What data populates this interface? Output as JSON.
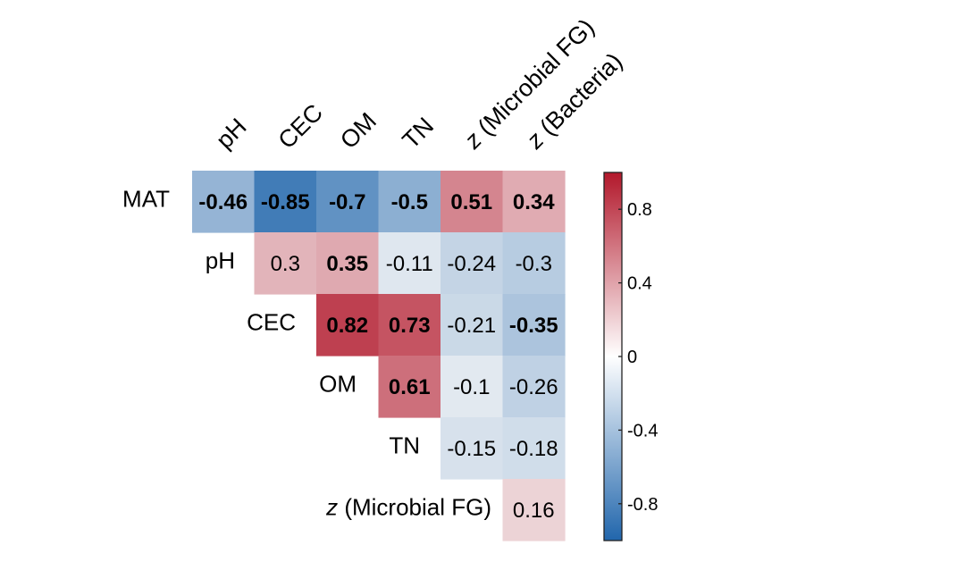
{
  "chart_data": {
    "type": "heatmap",
    "title": "",
    "columns": [
      "pH",
      "CEC",
      "OM",
      "TN",
      "z (Microbial FG)",
      "z (Bacteria)"
    ],
    "rows": [
      "MAT",
      "pH",
      "CEC",
      "OM",
      "TN",
      "z (Microbial FG)"
    ],
    "cells": [
      {
        "row": "MAT",
        "col": "pH",
        "value": -0.46,
        "bold": true
      },
      {
        "row": "MAT",
        "col": "CEC",
        "value": -0.85,
        "bold": true
      },
      {
        "row": "MAT",
        "col": "OM",
        "value": -0.7,
        "bold": true
      },
      {
        "row": "MAT",
        "col": "TN",
        "value": -0.5,
        "bold": true
      },
      {
        "row": "MAT",
        "col": "z (Microbial FG)",
        "value": 0.51,
        "bold": true
      },
      {
        "row": "MAT",
        "col": "z (Bacteria)",
        "value": 0.34,
        "bold": true
      },
      {
        "row": "pH",
        "col": "CEC",
        "value": 0.3,
        "bold": false
      },
      {
        "row": "pH",
        "col": "OM",
        "value": 0.35,
        "bold": true
      },
      {
        "row": "pH",
        "col": "TN",
        "value": -0.11,
        "bold": false
      },
      {
        "row": "pH",
        "col": "z (Microbial FG)",
        "value": -0.24,
        "bold": false
      },
      {
        "row": "pH",
        "col": "z (Bacteria)",
        "value": -0.3,
        "bold": false
      },
      {
        "row": "CEC",
        "col": "OM",
        "value": 0.82,
        "bold": true
      },
      {
        "row": "CEC",
        "col": "TN",
        "value": 0.73,
        "bold": true
      },
      {
        "row": "CEC",
        "col": "z (Microbial FG)",
        "value": -0.21,
        "bold": false
      },
      {
        "row": "CEC",
        "col": "z (Bacteria)",
        "value": -0.35,
        "bold": true
      },
      {
        "row": "OM",
        "col": "TN",
        "value": 0.61,
        "bold": true
      },
      {
        "row": "OM",
        "col": "z (Microbial FG)",
        "value": -0.1,
        "bold": false
      },
      {
        "row": "OM",
        "col": "z (Bacteria)",
        "value": -0.26,
        "bold": false
      },
      {
        "row": "TN",
        "col": "z (Microbial FG)",
        "value": -0.15,
        "bold": false
      },
      {
        "row": "TN",
        "col": "z (Bacteria)",
        "value": -0.18,
        "bold": false
      },
      {
        "row": "z (Microbial FG)",
        "col": "z (Bacteria)",
        "value": 0.16,
        "bold": false
      }
    ],
    "colorbar": {
      "range": [
        -1,
        1
      ],
      "ticks": [
        0.8,
        0.4,
        0,
        -0.4,
        -0.8
      ],
      "tick_labels": [
        "0.8",
        "0.4",
        "0",
        "-0.4",
        "-0.8"
      ]
    },
    "colors": {
      "negative": "#2166ac",
      "neutral": "#f7f7f7",
      "positive": "#b2182b"
    }
  }
}
